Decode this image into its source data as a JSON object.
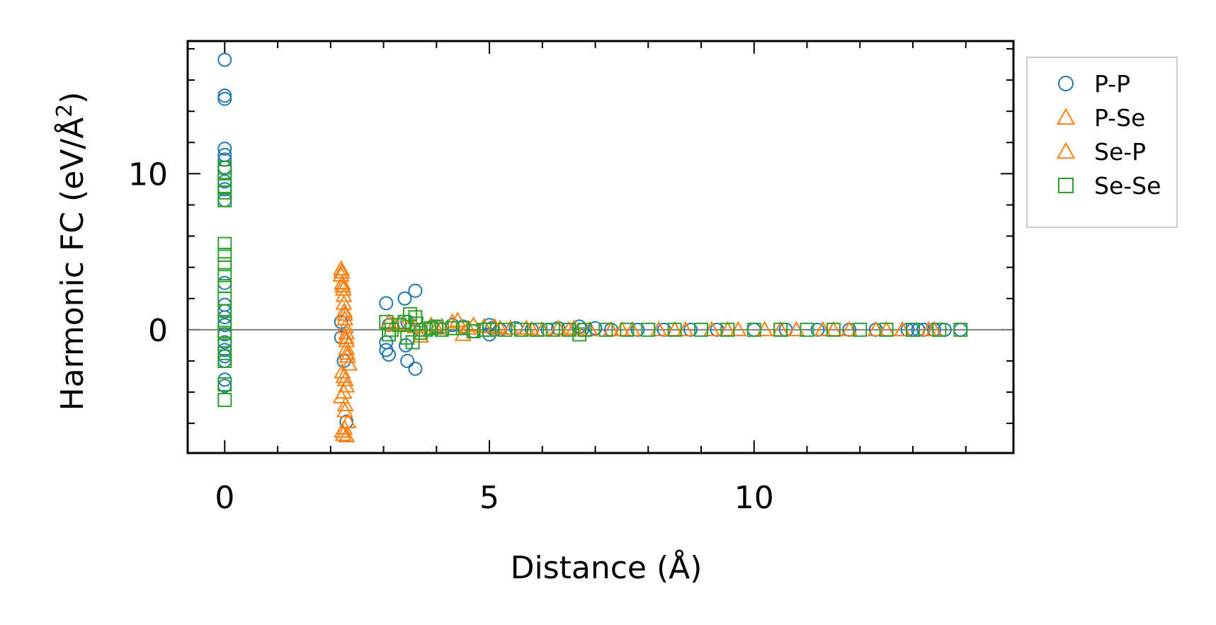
{
  "chart_data": {
    "type": "scatter",
    "xlabel": "Distance (Å)",
    "ylabel_main": "Harmonic FC (eV/Å",
    "ylabel_sup": "2",
    "ylabel_close": ")",
    "xlim": [
      -0.7,
      14.9
    ],
    "ylim": [
      -7.9,
      18.5
    ],
    "xticks": [
      0,
      5,
      10
    ],
    "xtick_labels": [
      "0",
      "5",
      "10"
    ],
    "yticks": [
      0,
      10
    ],
    "ytick_labels": [
      "0",
      "10"
    ],
    "zero_line": true,
    "grid": false,
    "legend_position": "outside-right-top",
    "series": [
      {
        "name": "P-P",
        "marker": "circle",
        "color": "#1f77b4",
        "x": [
          0,
          0,
          0,
          0,
          0,
          0,
          0,
          0,
          0,
          0,
          0,
          0,
          0,
          0,
          0,
          0,
          0,
          0,
          0,
          0,
          0,
          0,
          2.2,
          2.2,
          2.25,
          2.3,
          3.05,
          3.05,
          3.05,
          3.1,
          3.1,
          3.4,
          3.42,
          3.45,
          3.45,
          3.6,
          3.6,
          3.7,
          4.0,
          4.3,
          4.5,
          4.7,
          5.0,
          5.0,
          5.05,
          5.2,
          5.5,
          5.8,
          6.1,
          6.3,
          6.7,
          6.75,
          7.0,
          7.3,
          7.8,
          8.3,
          8.8,
          9.3,
          10.0,
          10.6,
          11.2,
          11.8,
          12.3,
          12.9,
          13.0,
          13.1,
          13.2,
          13.4,
          13.6,
          13.9
        ],
        "y": [
          17.3,
          15.0,
          14.8,
          11.6,
          11.2,
          10.9,
          10.4,
          9.5,
          9.0,
          8.3,
          3.0,
          1.6,
          1.2,
          0.8,
          0.3,
          -0.3,
          -0.8,
          -1.3,
          -1.7,
          -2.0,
          -3.2,
          -3.6,
          0.5,
          -0.5,
          -2.0,
          -5.9,
          1.7,
          -0.8,
          -1.3,
          -1.6,
          0.3,
          2.0,
          -1.0,
          -2.0,
          0.5,
          2.5,
          -2.5,
          0.0,
          0.2,
          0.3,
          0.2,
          -0.1,
          0.3,
          -0.3,
          0.1,
          0.0,
          0.1,
          0.0,
          0.0,
          0.1,
          0.2,
          0.0,
          0.1,
          0.0,
          0.0,
          0.0,
          0.0,
          0.0,
          0.0,
          0.0,
          0.0,
          0.0,
          0.0,
          0.0,
          0.0,
          0.0,
          0.0,
          0.0,
          0.0,
          0.0
        ]
      },
      {
        "name": "P-Se",
        "marker": "triangle",
        "color": "#ff7f0e",
        "x": [
          2.2,
          2.2,
          2.22,
          2.24,
          2.25,
          2.25,
          2.26,
          2.27,
          2.28,
          2.3,
          2.3,
          2.3,
          2.32,
          2.35,
          2.22,
          2.28,
          2.3,
          2.25,
          2.2,
          2.27,
          2.33,
          2.26,
          2.24,
          2.3,
          3.1,
          3.3,
          3.5,
          3.7,
          3.9,
          4.1,
          4.3,
          4.4,
          4.5,
          4.7,
          4.9,
          5.1,
          5.4,
          5.7,
          6.0,
          6.3,
          6.6,
          6.9,
          7.3,
          7.7,
          8.2,
          8.7,
          9.2,
          9.7,
          10.2,
          10.8,
          11.3,
          11.8,
          12.3,
          12.8,
          13.3
        ],
        "y": [
          3.9,
          3.5,
          3.0,
          2.6,
          2.2,
          1.7,
          1.2,
          0.7,
          0.2,
          -0.2,
          -0.7,
          -1.2,
          -1.7,
          -2.2,
          -2.7,
          -3.2,
          -3.6,
          -4.0,
          -4.3,
          -5.2,
          -5.9,
          -6.3,
          -6.7,
          -6.8,
          0.5,
          0.4,
          0.3,
          -0.4,
          0.3,
          0.2,
          0.5,
          0.6,
          -0.3,
          0.3,
          0.2,
          0.2,
          0.1,
          0.1,
          0.0,
          0.1,
          0.1,
          0.0,
          0.0,
          0.0,
          0.0,
          0.0,
          0.0,
          0.0,
          0.0,
          0.0,
          0.0,
          0.0,
          0.0,
          0.0,
          0.0
        ]
      },
      {
        "name": "Se-P",
        "marker": "triangle",
        "color": "#ff7f0e",
        "x": [
          2.21,
          2.23,
          2.27,
          2.29,
          2.31,
          2.25,
          2.28,
          2.22,
          3.2,
          3.6,
          4.0,
          4.6,
          5.2,
          5.8,
          6.5,
          7.5,
          8.5,
          9.5,
          10.5,
          11.5,
          12.5,
          13.4
        ],
        "y": [
          3.7,
          2.8,
          1.0,
          -0.5,
          -1.5,
          -3.0,
          -4.8,
          -6.5,
          0.3,
          0.2,
          0.1,
          0.1,
          0.1,
          0.0,
          0.0,
          0.0,
          0.0,
          0.0,
          0.0,
          0.0,
          0.0,
          0.0
        ]
      },
      {
        "name": "Se-Se",
        "marker": "square",
        "color": "#2ca02c",
        "x": [
          0,
          0,
          0,
          0,
          0,
          0,
          0,
          0,
          0,
          0,
          0,
          0,
          0,
          0,
          0,
          0,
          0,
          0,
          0,
          0,
          3.05,
          3.1,
          3.15,
          3.3,
          3.4,
          3.45,
          3.5,
          3.55,
          3.6,
          3.62,
          3.7,
          3.8,
          3.9,
          4.0,
          4.1,
          4.3,
          4.5,
          4.7,
          4.9,
          5.0,
          5.3,
          5.6,
          5.9,
          6.2,
          6.5,
          6.7,
          6.8,
          7.2,
          7.6,
          8.0,
          8.5,
          9.0,
          9.5,
          10.0,
          10.5,
          11.0,
          11.5,
          12.0,
          12.5,
          13.0,
          13.5,
          13.9
        ],
        "y": [
          10.4,
          10.1,
          9.6,
          9.2,
          8.8,
          8.3,
          5.5,
          4.8,
          4.2,
          3.5,
          2.8,
          2.0,
          1.2,
          0.5,
          -0.2,
          -0.9,
          -1.5,
          -2.0,
          -3.5,
          -4.5,
          0.5,
          -0.3,
          0.0,
          0.3,
          0.5,
          -0.5,
          1.0,
          -0.8,
          0.8,
          0.4,
          -0.2,
          0.0,
          0.1,
          0.2,
          0.0,
          0.1,
          0.1,
          -0.1,
          0.0,
          0.0,
          0.0,
          0.0,
          0.0,
          0.0,
          0.0,
          -0.3,
          0.0,
          0.0,
          0.0,
          0.0,
          0.0,
          0.0,
          0.0,
          0.0,
          0.0,
          0.0,
          0.0,
          0.0,
          0.0,
          0.0,
          0.0,
          0.0
        ]
      }
    ]
  }
}
